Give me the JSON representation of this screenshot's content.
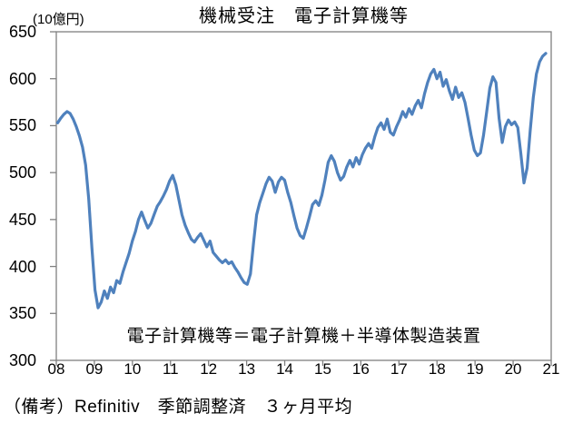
{
  "chart_data": {
    "type": "line",
    "title": "機械受注　電子計算機等",
    "ylabel": "(10億円)",
    "annotation": "電子計算機等＝電子計算機＋半導体製造装置",
    "source_note": "（備考）Refinitiv　季節調整済　３ヶ月平均",
    "ylim": [
      300,
      650
    ],
    "ytick_step": 50,
    "ytick_labels": [
      "300",
      "350",
      "400",
      "450",
      "500",
      "550",
      "600",
      "650"
    ],
    "xtick_labels": [
      "08",
      "09",
      "10",
      "11",
      "12",
      "13",
      "14",
      "15",
      "16",
      "17",
      "18",
      "19",
      "20",
      "21"
    ],
    "x_start": "2008-01",
    "x_end": "2021-02",
    "points_per_year": 12,
    "grid": false,
    "legend": "none",
    "line_color": "#4F81BD",
    "axis_color": "#808080",
    "values": [
      553,
      558,
      562,
      565,
      563,
      557,
      549,
      539,
      527,
      508,
      472,
      420,
      375,
      356,
      362,
      374,
      366,
      378,
      372,
      385,
      382,
      394,
      404,
      414,
      427,
      437,
      450,
      458,
      449,
      441,
      446,
      455,
      464,
      469,
      475,
      482,
      491,
      497,
      487,
      471,
      455,
      444,
      436,
      429,
      426,
      431,
      435,
      428,
      421,
      427,
      415,
      411,
      407,
      404,
      407,
      403,
      405,
      399,
      394,
      388,
      383,
      381,
      392,
      425,
      455,
      468,
      478,
      488,
      495,
      491,
      479,
      490,
      495,
      492,
      479,
      468,
      454,
      441,
      433,
      430,
      441,
      453,
      466,
      470,
      465,
      476,
      492,
      511,
      518,
      512,
      500,
      492,
      496,
      506,
      513,
      506,
      516,
      509,
      519,
      526,
      531,
      526,
      538,
      548,
      553,
      546,
      557,
      543,
      540,
      549,
      556,
      565,
      559,
      568,
      562,
      571,
      577,
      569,
      584,
      596,
      605,
      610,
      600,
      607,
      592,
      599,
      587,
      578,
      591,
      580,
      585,
      575,
      558,
      540,
      524,
      518,
      521,
      540,
      565,
      590,
      602,
      596,
      558,
      532,
      549,
      556,
      551,
      554,
      548,
      520,
      489,
      505,
      545,
      580,
      605,
      618,
      624,
      627
    ]
  }
}
